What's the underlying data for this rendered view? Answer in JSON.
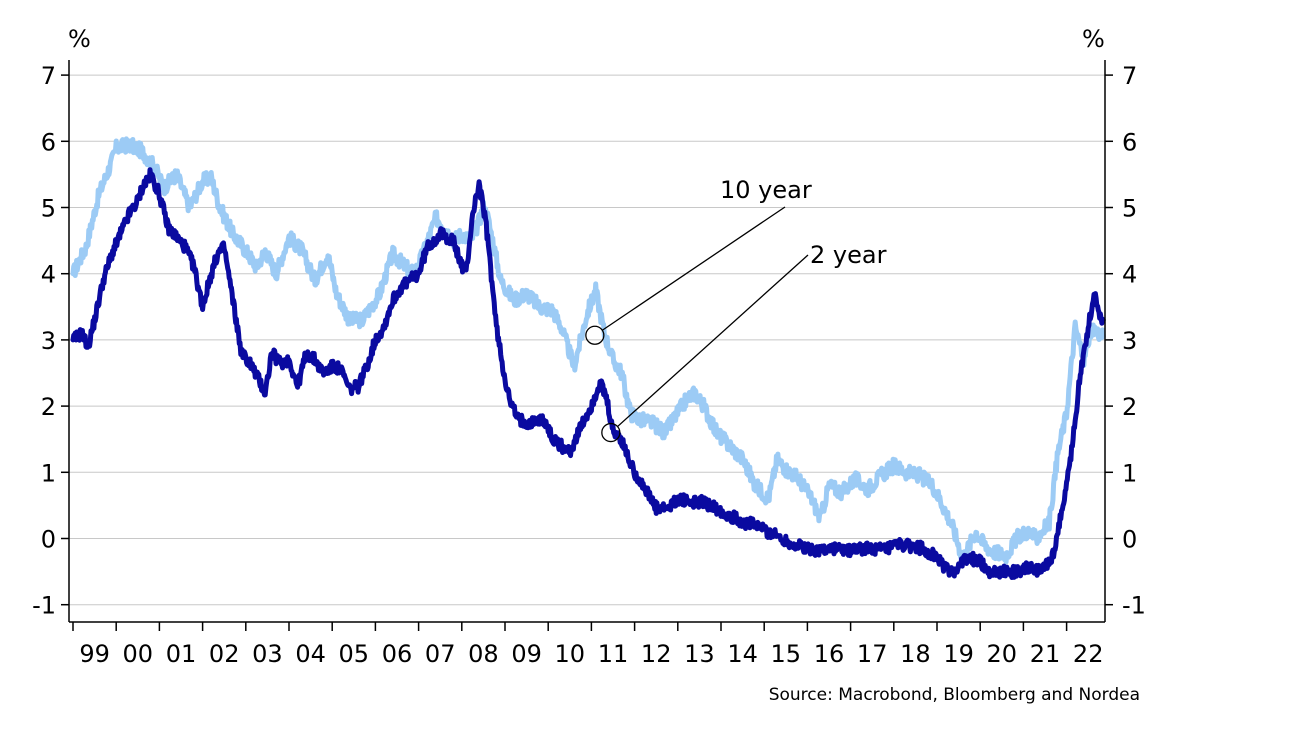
{
  "chart_data": {
    "type": "line",
    "title": "",
    "xlabel": "",
    "ylabel_left": "%",
    "ylabel_right": "%",
    "ylim": [
      -1,
      7
    ],
    "yticks": [
      "-1",
      "0",
      "1",
      "2",
      "3",
      "4",
      "5",
      "6",
      "7"
    ],
    "y_gridlines": true,
    "x_range": [
      1999.0,
      2022.85
    ],
    "x_tick_labels": [
      "99",
      "00",
      "01",
      "02",
      "03",
      "04",
      "05",
      "06",
      "07",
      "08",
      "09",
      "10",
      "11",
      "12",
      "13",
      "14",
      "15",
      "16",
      "17",
      "18",
      "19",
      "20",
      "21",
      "22"
    ],
    "series": [
      {
        "name": "10 year",
        "color": "#9ccbf5",
        "x": [
          1999.0,
          1999.3,
          1999.6,
          1999.9,
          2000.0,
          2000.3,
          2000.6,
          2000.9,
          2001.1,
          2001.4,
          2001.7,
          2002.0,
          2002.2,
          2002.4,
          2002.7,
          2003.0,
          2003.25,
          2003.45,
          2003.7,
          2004.0,
          2004.3,
          2004.6,
          2004.9,
          2005.1,
          2005.4,
          2005.7,
          2005.9,
          2006.1,
          2006.4,
          2006.7,
          2006.9,
          2007.1,
          2007.4,
          2007.6,
          2007.8,
          2008.0,
          2008.2,
          2008.35,
          2008.5,
          2008.6,
          2008.7,
          2008.9,
          2009.2,
          2009.5,
          2009.8,
          2010.1,
          2010.3,
          2010.6,
          2010.9,
          2011.1,
          2011.3,
          2011.5,
          2011.7,
          2011.9,
          2012.1,
          2012.4,
          2012.7,
          2012.9,
          2013.2,
          2013.4,
          2013.6,
          2013.9,
          2014.2,
          2014.5,
          2014.8,
          2015.1,
          2015.3,
          2015.5,
          2015.8,
          2016.1,
          2016.3,
          2016.5,
          2016.8,
          2017.1,
          2017.4,
          2017.7,
          2018.0,
          2018.3,
          2018.6,
          2018.9,
          2019.1,
          2019.35,
          2019.6,
          2019.9,
          2020.1,
          2020.3,
          2020.6,
          2020.9,
          2021.1,
          2021.3,
          2021.6,
          2021.8,
          2022.0,
          2022.2,
          2022.4,
          2022.5,
          2022.65,
          2022.85
        ],
        "values": [
          4.0,
          4.4,
          5.2,
          5.7,
          5.9,
          5.95,
          5.85,
          5.6,
          5.3,
          5.5,
          5.0,
          5.4,
          5.45,
          5.0,
          4.6,
          4.35,
          4.1,
          4.35,
          4.0,
          4.55,
          4.35,
          3.9,
          4.3,
          3.7,
          3.3,
          3.3,
          3.5,
          3.7,
          4.3,
          4.1,
          4.0,
          4.3,
          4.85,
          4.7,
          4.5,
          4.6,
          4.5,
          4.7,
          5.0,
          4.85,
          4.55,
          3.9,
          3.6,
          3.7,
          3.5,
          3.45,
          3.2,
          2.6,
          3.4,
          3.75,
          3.1,
          2.7,
          2.5,
          1.9,
          1.8,
          1.75,
          1.6,
          1.8,
          2.1,
          2.2,
          2.0,
          1.6,
          1.4,
          1.2,
          0.8,
          0.6,
          1.2,
          1.05,
          0.9,
          0.6,
          0.3,
          0.8,
          0.7,
          0.9,
          0.75,
          0.95,
          1.1,
          1.0,
          0.95,
          0.8,
          0.55,
          0.2,
          -0.3,
          0.1,
          -0.1,
          -0.2,
          -0.25,
          0.05,
          0.1,
          0.0,
          0.25,
          1.3,
          1.9,
          3.2,
          2.7,
          3.0,
          3.15,
          3.05
        ]
      },
      {
        "name": "2 year",
        "color": "#0a0aa0",
        "x": [
          1999.0,
          1999.2,
          1999.35,
          1999.5,
          1999.7,
          1999.9,
          2000.1,
          2000.3,
          2000.5,
          2000.6,
          2000.8,
          2001.0,
          2001.2,
          2001.4,
          2001.6,
          2001.8,
          2002.0,
          2002.2,
          2002.35,
          2002.5,
          2002.7,
          2002.9,
          2003.1,
          2003.3,
          2003.45,
          2003.6,
          2003.8,
          2004.0,
          2004.2,
          2004.4,
          2004.6,
          2004.8,
          2005.0,
          2005.2,
          2005.4,
          2005.6,
          2005.8,
          2006.0,
          2006.2,
          2006.4,
          2006.6,
          2006.8,
          2007.0,
          2007.2,
          2007.5,
          2007.8,
          2007.95,
          2008.1,
          2008.25,
          2008.4,
          2008.55,
          2008.65,
          2008.8,
          2008.95,
          2009.1,
          2009.3,
          2009.6,
          2009.9,
          2010.1,
          2010.3,
          2010.5,
          2010.7,
          2011.0,
          2011.2,
          2011.35,
          2011.5,
          2011.65,
          2011.8,
          2012.0,
          2012.2,
          2012.5,
          2012.8,
          2013.0,
          2013.3,
          2013.6,
          2013.9,
          2014.2,
          2014.5,
          2014.8,
          2015.1,
          2015.4,
          2015.7,
          2016.0,
          2016.3,
          2016.6,
          2016.9,
          2017.2,
          2017.5,
          2017.8,
          2018.1,
          2018.4,
          2018.7,
          2019.0,
          2019.2,
          2019.4,
          2019.6,
          2019.8,
          2020.0,
          2020.2,
          2020.5,
          2020.8,
          2021.1,
          2021.4,
          2021.7,
          2021.85,
          2022.0,
          2022.15,
          2022.3,
          2022.45,
          2022.55,
          2022.65,
          2022.75,
          2022.85
        ],
        "values": [
          3.0,
          3.1,
          2.9,
          3.3,
          3.9,
          4.3,
          4.6,
          4.9,
          5.1,
          5.3,
          5.5,
          5.2,
          4.7,
          4.55,
          4.4,
          4.1,
          3.5,
          4.0,
          4.3,
          4.4,
          3.6,
          2.8,
          2.65,
          2.4,
          2.2,
          2.8,
          2.65,
          2.7,
          2.3,
          2.8,
          2.7,
          2.5,
          2.6,
          2.55,
          2.25,
          2.3,
          2.6,
          3.0,
          3.2,
          3.6,
          3.8,
          3.9,
          4.0,
          4.4,
          4.6,
          4.5,
          4.2,
          4.0,
          4.9,
          5.35,
          4.8,
          4.2,
          3.2,
          2.6,
          2.1,
          1.8,
          1.75,
          1.8,
          1.5,
          1.4,
          1.3,
          1.6,
          2.0,
          2.35,
          2.1,
          1.6,
          1.55,
          1.3,
          1.0,
          0.8,
          0.45,
          0.45,
          0.6,
          0.55,
          0.55,
          0.45,
          0.35,
          0.25,
          0.2,
          0.1,
          0.0,
          -0.1,
          -0.15,
          -0.18,
          -0.15,
          -0.18,
          -0.15,
          -0.15,
          -0.18,
          -0.1,
          -0.12,
          -0.15,
          -0.3,
          -0.45,
          -0.5,
          -0.35,
          -0.3,
          -0.35,
          -0.5,
          -0.5,
          -0.5,
          -0.45,
          -0.5,
          -0.25,
          0.3,
          0.8,
          1.5,
          2.4,
          3.0,
          3.4,
          3.7,
          3.4,
          3.3
        ]
      }
    ],
    "annotations": [
      {
        "label": "10 year",
        "series": "10 year",
        "point": [
          2011.08,
          3.07
        ]
      },
      {
        "label": "2 year",
        "series": "2 year",
        "point": [
          2011.45,
          1.6
        ]
      }
    ],
    "source": "Source: Macrobond, Bloomberg and Nordea"
  }
}
